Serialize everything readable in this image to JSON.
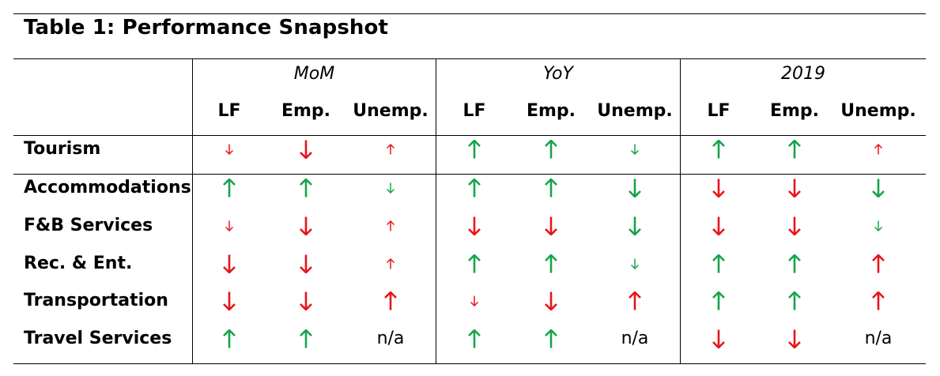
{
  "title": "Table 1: Performance Snapshot",
  "colors": {
    "up": "#17a34a",
    "down": "#e8141c",
    "text": "#000000"
  },
  "icon_legend": {
    "up": "arrow-up-icon",
    "down": "arrow-down-icon",
    "small": "smaller arrow",
    "large": "larger arrow"
  },
  "groups": [
    "MoM",
    "YoY",
    "2019"
  ],
  "columns": [
    "LF",
    "Emp.",
    "Unemp."
  ],
  "rows": [
    {
      "label": "Tourism",
      "cells": [
        [
          "down",
          "red",
          "small"
        ],
        [
          "down",
          "red",
          "large"
        ],
        [
          "up",
          "red",
          "small"
        ],
        [
          "up",
          "green",
          "large"
        ],
        [
          "up",
          "green",
          "large"
        ],
        [
          "down",
          "green",
          "small"
        ],
        [
          "up",
          "green",
          "large"
        ],
        [
          "up",
          "green",
          "large"
        ],
        [
          "up",
          "red",
          "small"
        ]
      ]
    },
    {
      "label": "Accommodations",
      "cells": [
        [
          "up",
          "green",
          "large"
        ],
        [
          "up",
          "green",
          "large"
        ],
        [
          "down",
          "green",
          "small"
        ],
        [
          "up",
          "green",
          "large"
        ],
        [
          "up",
          "green",
          "large"
        ],
        [
          "down",
          "green",
          "large"
        ],
        [
          "down",
          "red",
          "large"
        ],
        [
          "down",
          "red",
          "large"
        ],
        [
          "down",
          "green",
          "large"
        ]
      ]
    },
    {
      "label": "F&B Services",
      "cells": [
        [
          "down",
          "red",
          "small"
        ],
        [
          "down",
          "red",
          "large"
        ],
        [
          "up",
          "red",
          "small"
        ],
        [
          "down",
          "red",
          "large"
        ],
        [
          "down",
          "red",
          "large"
        ],
        [
          "down",
          "green",
          "large"
        ],
        [
          "down",
          "red",
          "large"
        ],
        [
          "down",
          "red",
          "large"
        ],
        [
          "down",
          "green",
          "small"
        ]
      ]
    },
    {
      "label": "Rec. & Ent.",
      "cells": [
        [
          "down",
          "red",
          "large"
        ],
        [
          "down",
          "red",
          "large"
        ],
        [
          "up",
          "red",
          "small"
        ],
        [
          "up",
          "green",
          "large"
        ],
        [
          "up",
          "green",
          "large"
        ],
        [
          "down",
          "green",
          "small"
        ],
        [
          "up",
          "green",
          "large"
        ],
        [
          "up",
          "green",
          "large"
        ],
        [
          "up",
          "red",
          "large"
        ]
      ]
    },
    {
      "label": "Transportation",
      "cells": [
        [
          "down",
          "red",
          "large"
        ],
        [
          "down",
          "red",
          "large"
        ],
        [
          "up",
          "red",
          "large"
        ],
        [
          "down",
          "red",
          "small"
        ],
        [
          "down",
          "red",
          "large"
        ],
        [
          "up",
          "red",
          "large"
        ],
        [
          "up",
          "green",
          "large"
        ],
        [
          "up",
          "green",
          "large"
        ],
        [
          "up",
          "red",
          "large"
        ]
      ]
    },
    {
      "label": "Travel Services",
      "cells": [
        [
          "up",
          "green",
          "large"
        ],
        [
          "up",
          "green",
          "large"
        ],
        [
          "n/a"
        ],
        [
          "up",
          "green",
          "large"
        ],
        [
          "up",
          "green",
          "large"
        ],
        [
          "n/a"
        ],
        [
          "down",
          "red",
          "large"
        ],
        [
          "down",
          "red",
          "large"
        ],
        [
          "n/a"
        ]
      ]
    }
  ]
}
